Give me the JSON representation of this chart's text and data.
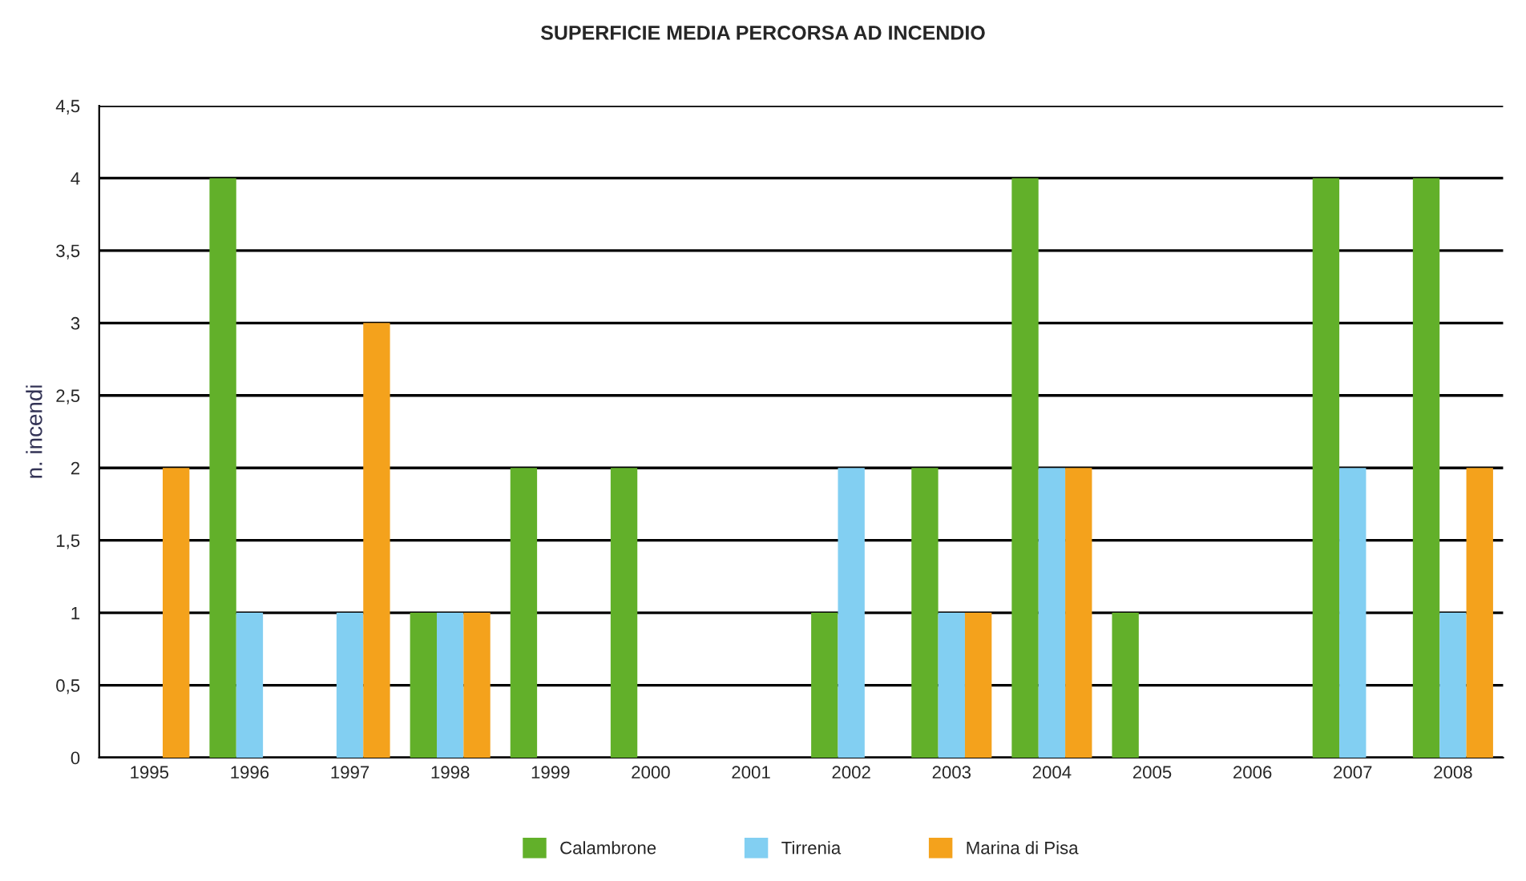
{
  "chart_data": {
    "type": "bar",
    "title": "SUPERFICIE MEDIA PERCORSA AD INCENDIO",
    "ylabel": "n. incendi",
    "categories": [
      "1995",
      "1996",
      "1997",
      "1998",
      "1999",
      "2000",
      "2001",
      "2002",
      "2003",
      "2004",
      "2005",
      "2006",
      "2007",
      "2008"
    ],
    "series": [
      {
        "name": "Calambrone",
        "color": "#62b02a",
        "values": [
          0,
          4,
          0,
          1,
          2,
          2,
          0,
          1,
          2,
          4,
          1,
          0,
          4,
          4
        ]
      },
      {
        "name": "Tirrenia",
        "color": "#82cff2",
        "values": [
          0,
          1,
          1,
          1,
          0,
          0,
          0,
          2,
          1,
          2,
          0,
          0,
          2,
          1
        ]
      },
      {
        "name": "Marina di Pisa",
        "color": "#f4a21c",
        "values": [
          2,
          0,
          3,
          1,
          0,
          0,
          0,
          0,
          1,
          2,
          0,
          0,
          0,
          2
        ]
      }
    ],
    "ylim": [
      0,
      4.5
    ],
    "yticks": [
      0,
      {
        "value": 0.5,
        "label": "0,5"
      },
      1,
      {
        "value": 1.5,
        "label": "1,5"
      },
      2,
      {
        "value": 2.5,
        "label": "2,5"
      },
      3,
      {
        "value": 3.5,
        "label": "3,5"
      },
      4,
      {
        "value": 4.5,
        "label": "4,5"
      }
    ],
    "grid": "y",
    "legend": "bottom"
  }
}
